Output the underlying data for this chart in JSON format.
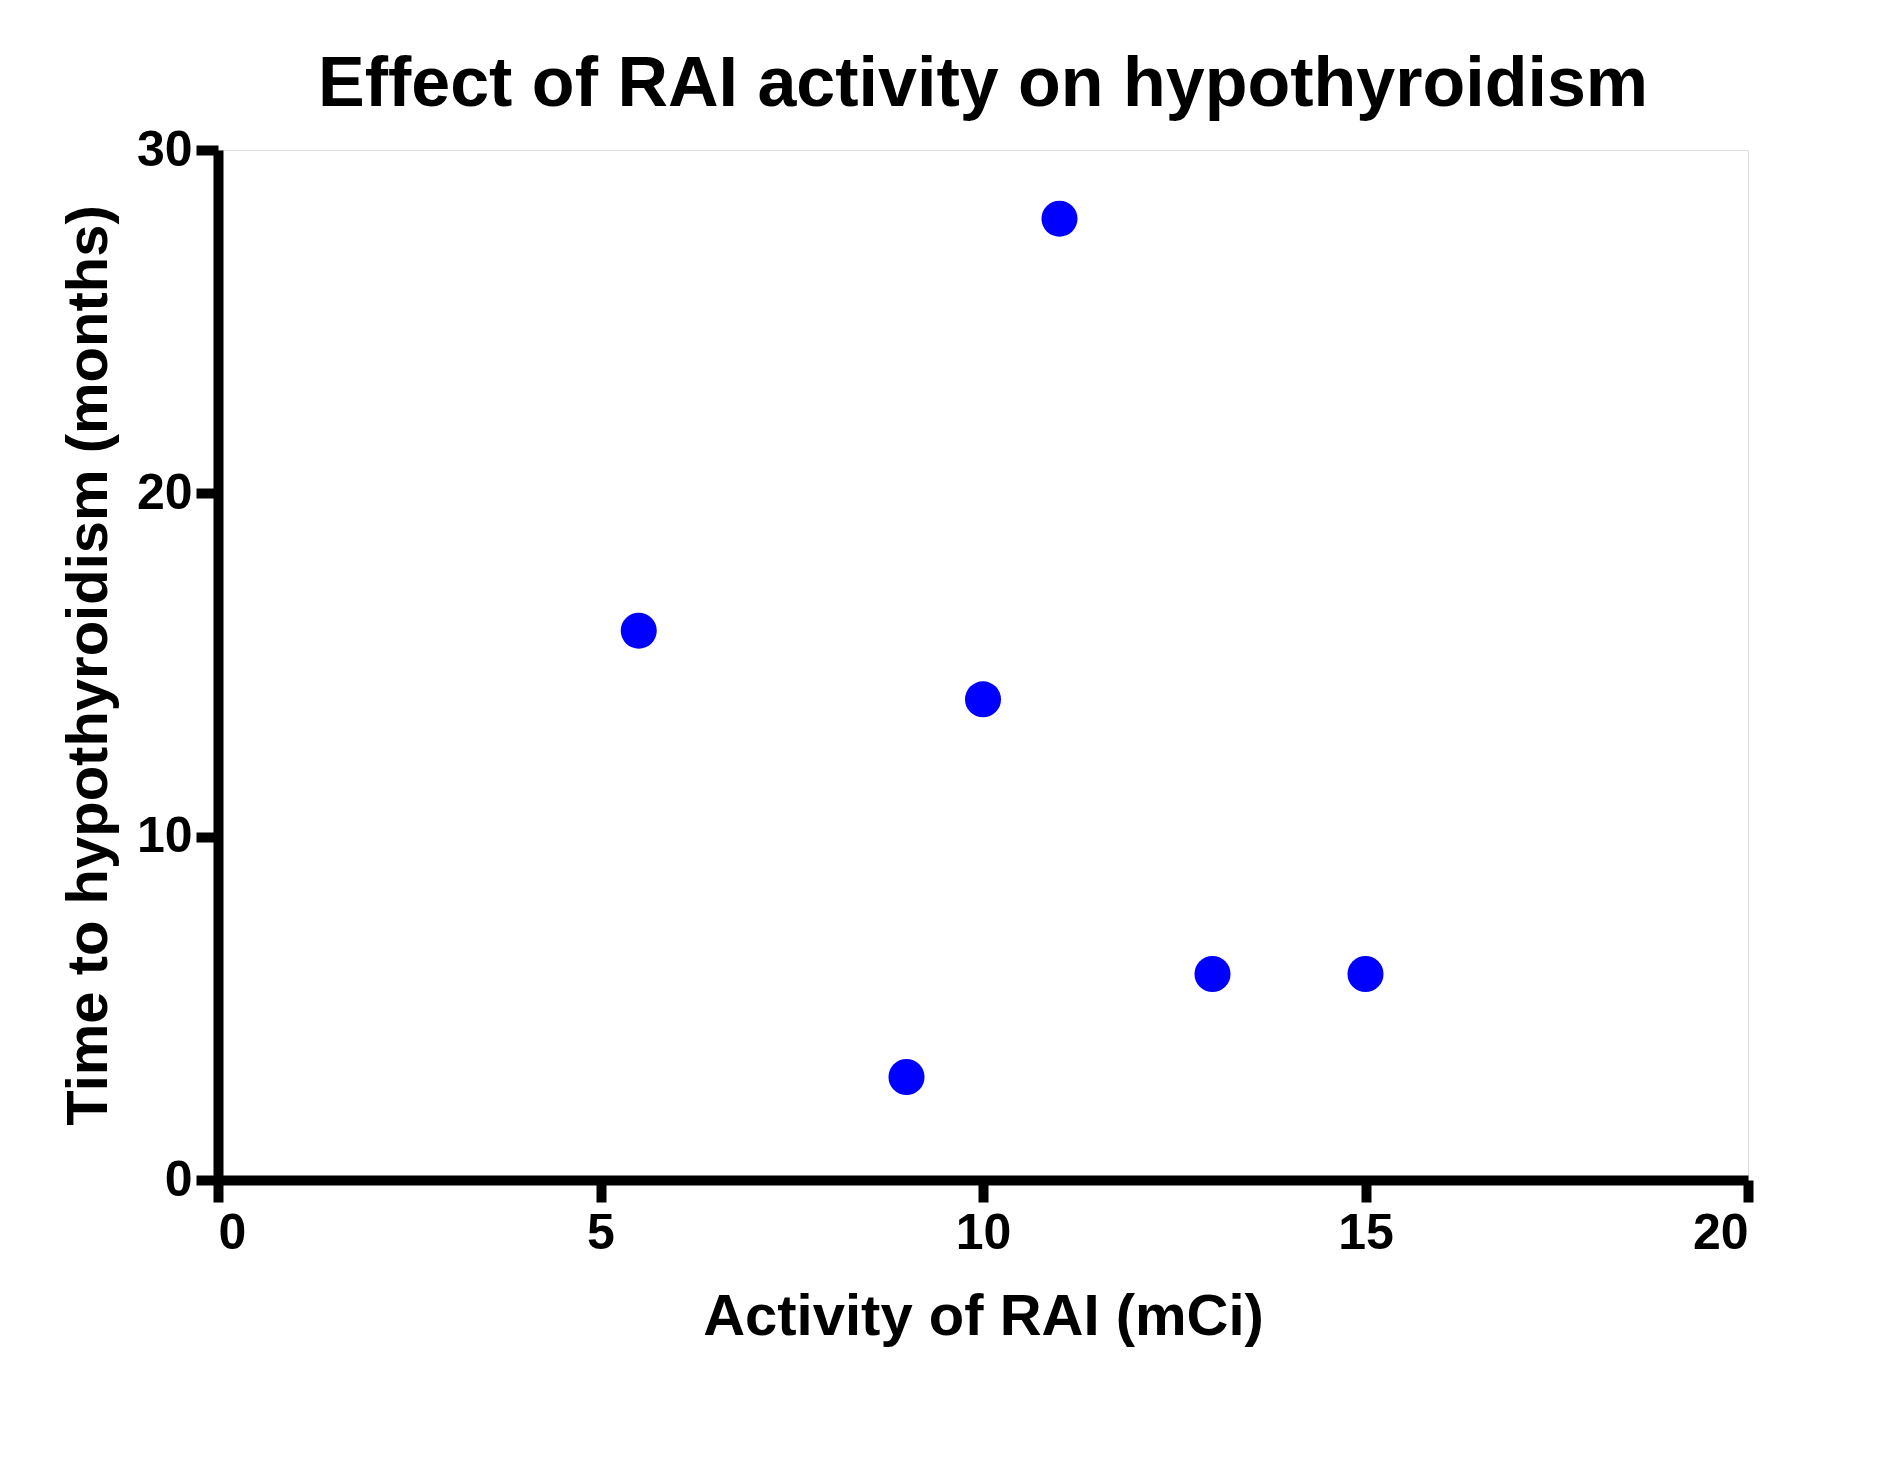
{
  "chart_data": {
    "type": "scatter",
    "title": "Effect of RAI activity on hypothyroidism",
    "xlabel": "Activity of RAI (mCi)",
    "ylabel": "Time to hypothyroidism (months)",
    "x": [
      5.5,
      9,
      10,
      11,
      13,
      15
    ],
    "series": [
      {
        "color": "#0000ff",
        "values": [
          16,
          3,
          14,
          28,
          6,
          6
        ]
      }
    ],
    "xlim": [
      0,
      20
    ],
    "xticks": [
      0,
      5,
      10,
      15,
      20
    ],
    "ylim": [
      0,
      30
    ],
    "yticks": [
      0,
      10,
      20,
      30
    ],
    "grid": false,
    "marker": "circle"
  }
}
